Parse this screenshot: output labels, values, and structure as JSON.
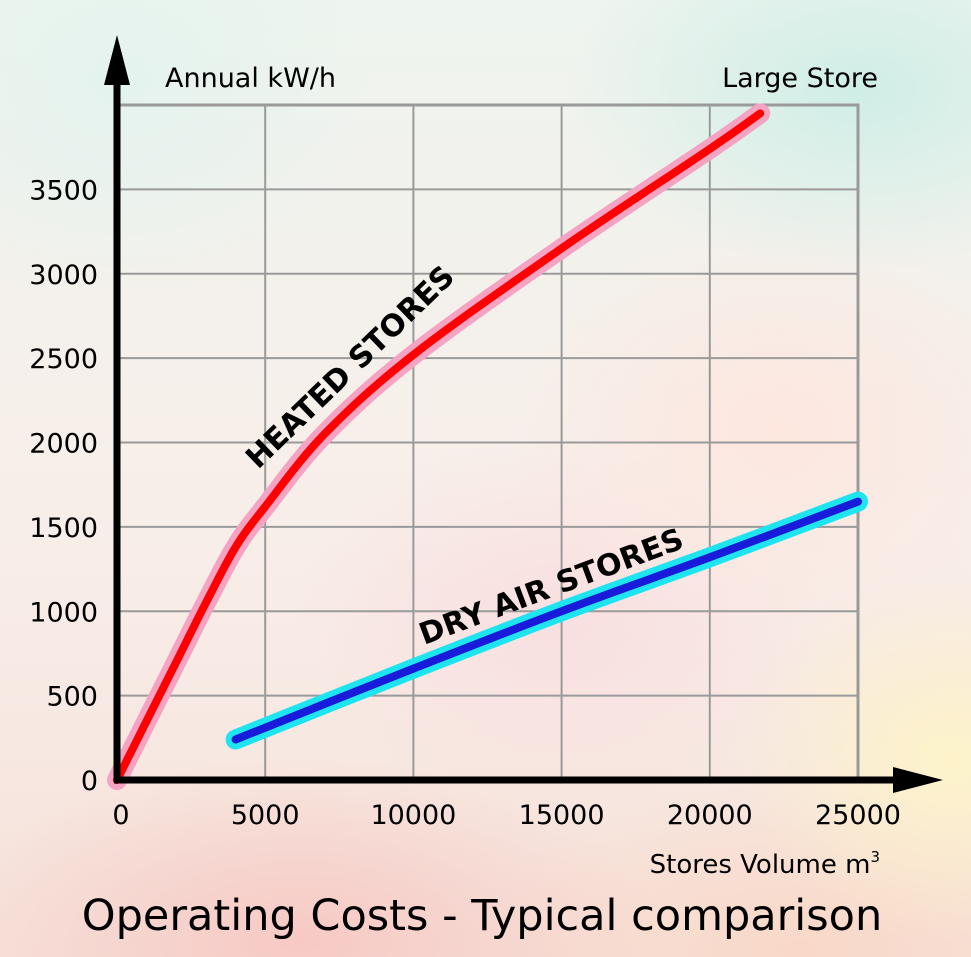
{
  "chart_data": {
    "type": "line",
    "title": "Operating Costs - Typical comparison",
    "ylabel": "Annual kW/h",
    "xlabel": "Stores Volume m",
    "xlabel_superscript": "3",
    "corner_label": "Large Store",
    "xlim": [
      0,
      25000
    ],
    "ylim": [
      0,
      4000
    ],
    "x_ticks": [
      0,
      5000,
      10000,
      15000,
      20000,
      25000
    ],
    "y_ticks": [
      0,
      500,
      1000,
      1500,
      2000,
      2500,
      3000,
      3500
    ],
    "grid": true,
    "series": [
      {
        "name": "HEATED STORES",
        "color": "#ff0000",
        "halo_color": "#f5a3c3",
        "x": [
          0,
          1000,
          2000,
          3000,
          4000,
          5000,
          7000,
          10000,
          15000,
          20000,
          21700
        ],
        "y": [
          0,
          350,
          700,
          1050,
          1380,
          1620,
          2050,
          2520,
          3150,
          3740,
          3950
        ]
      },
      {
        "name": "DRY AIR STORES",
        "color": "#1a1adb",
        "halo_color": "#1ee4f0",
        "x": [
          4000,
          10000,
          15000,
          20000,
          25000
        ],
        "y": [
          240,
          660,
          1000,
          1320,
          1650
        ]
      }
    ]
  }
}
